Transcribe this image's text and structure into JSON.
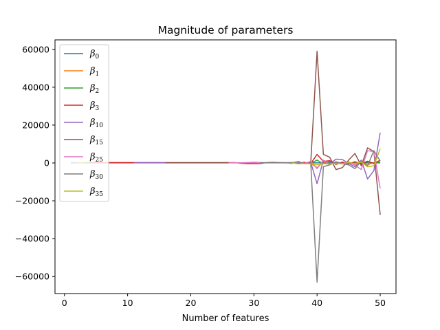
{
  "chart_data": {
    "type": "line",
    "title": "Magnitude of parameters",
    "xlabel": "Number of features",
    "ylabel": "",
    "xlim": [
      -1.5,
      52.5
    ],
    "ylim": [
      -69000,
      65000
    ],
    "xticks": [
      0,
      10,
      20,
      30,
      40,
      50
    ],
    "yticks": [
      -60000,
      -40000,
      -20000,
      0,
      20000,
      40000,
      60000
    ],
    "ytick_labels": [
      "−60000",
      "−40000",
      "−20000",
      "0",
      "20000",
      "40000",
      "60000"
    ],
    "grid": false,
    "legend_position": "top-left",
    "series": [
      {
        "name": "β",
        "sub": "0",
        "color": "#1f77b4",
        "x": [
          1,
          2,
          3,
          4,
          5,
          6,
          7,
          8,
          9,
          10,
          11,
          12,
          13,
          14,
          15,
          16,
          17,
          18,
          19,
          20,
          21,
          22,
          23,
          24,
          25,
          26,
          27,
          28,
          29,
          30,
          31,
          32,
          33,
          34,
          35,
          36,
          37,
          38,
          39,
          40,
          41,
          42,
          43,
          44,
          45,
          46,
          47,
          48,
          49,
          50
        ],
        "y": [
          50,
          50,
          50,
          50,
          50,
          50,
          50,
          50,
          50,
          50,
          50,
          50,
          50,
          50,
          50,
          50,
          50,
          50,
          50,
          50,
          50,
          50,
          50,
          50,
          50,
          50,
          50,
          50,
          50,
          50,
          50,
          50,
          50,
          50,
          50,
          50,
          50,
          50,
          50,
          50,
          50,
          50,
          50,
          50,
          50,
          50,
          50,
          50,
          50,
          50
        ]
      },
      {
        "name": "β",
        "sub": "1",
        "color": "#ff7f0e",
        "x": [
          2,
          3,
          4,
          5,
          6,
          7,
          8,
          9,
          10,
          11,
          12,
          13,
          14,
          15,
          16,
          17,
          18,
          19,
          20,
          21,
          22,
          23,
          24,
          25,
          26,
          27,
          28,
          29,
          30,
          31,
          32,
          33,
          34,
          35,
          36,
          37,
          38,
          39,
          40,
          41,
          42,
          43,
          44,
          45,
          46,
          47,
          48,
          49,
          50
        ],
        "y": [
          100,
          100,
          100,
          100,
          100,
          100,
          100,
          100,
          100,
          100,
          100,
          100,
          100,
          100,
          100,
          100,
          100,
          100,
          100,
          100,
          100,
          100,
          100,
          100,
          100,
          100,
          100,
          100,
          100,
          100,
          100,
          100,
          100,
          100,
          100,
          -200,
          200,
          -300,
          -2500,
          500,
          -500,
          300,
          -200,
          500,
          -800,
          500,
          -1000,
          300,
          500
        ]
      },
      {
        "name": "β",
        "sub": "2",
        "color": "#2ca02c",
        "x": [
          3,
          4,
          5,
          6,
          7,
          8,
          9,
          10,
          11,
          12,
          13,
          14,
          15,
          16,
          17,
          18,
          19,
          20,
          21,
          22,
          23,
          24,
          25,
          26,
          27,
          28,
          29,
          30,
          31,
          32,
          33,
          34,
          35,
          36,
          37,
          38,
          39,
          40,
          41,
          42,
          43,
          44,
          45,
          46,
          47,
          48,
          49,
          50
        ],
        "y": [
          100,
          100,
          100,
          100,
          100,
          100,
          100,
          100,
          100,
          100,
          100,
          100,
          100,
          100,
          100,
          100,
          100,
          100,
          100,
          100,
          100,
          100,
          100,
          100,
          100,
          100,
          100,
          100,
          100,
          100,
          100,
          100,
          100,
          100,
          100,
          100,
          -200,
          1500,
          -500,
          800,
          -300,
          400,
          -200,
          300,
          -300,
          500,
          -200,
          300
        ]
      },
      {
        "name": "β",
        "sub": "3",
        "color": "#d62728",
        "x": [
          4,
          5,
          6,
          7,
          8,
          9,
          10,
          11,
          12,
          13,
          14,
          15,
          16,
          17,
          18,
          19,
          20,
          21,
          22,
          23,
          24,
          25,
          26,
          27,
          28,
          29,
          30,
          31,
          32,
          33,
          34,
          35,
          36,
          37,
          38,
          39,
          40,
          41,
          42,
          43,
          44,
          45,
          46,
          47,
          48,
          49,
          50
        ],
        "y": [
          200,
          200,
          200,
          200,
          200,
          200,
          200,
          200,
          200,
          200,
          200,
          200,
          200,
          200,
          200,
          200,
          200,
          200,
          200,
          200,
          200,
          200,
          200,
          200,
          -200,
          -400,
          -400,
          -300,
          200,
          300,
          200,
          100,
          200,
          -200,
          300,
          -400,
          4500,
          800,
          1200,
          -800,
          300,
          -500,
          600,
          -400,
          900,
          -300,
          1500
        ]
      },
      {
        "name": "β",
        "sub": "10",
        "color": "#9467bd",
        "x": [
          11,
          12,
          13,
          14,
          15,
          16,
          17,
          18,
          19,
          20,
          21,
          22,
          23,
          24,
          25,
          26,
          27,
          28,
          29,
          30,
          31,
          32,
          33,
          34,
          35,
          36,
          37,
          38,
          39,
          40,
          41,
          42,
          43,
          44,
          45,
          46,
          47,
          48,
          49,
          50
        ],
        "y": [
          100,
          100,
          100,
          100,
          100,
          100,
          100,
          100,
          100,
          100,
          100,
          100,
          100,
          100,
          100,
          100,
          100,
          100,
          200,
          300,
          200,
          100,
          200,
          100,
          200,
          -300,
          800,
          -500,
          300,
          -11000,
          1500,
          -500,
          2000,
          1800,
          -200,
          -2000,
          1500,
          -8500,
          -4000,
          16000
        ]
      },
      {
        "name": "β",
        "sub": "15",
        "color": "#8c564b",
        "x": [
          16,
          17,
          18,
          19,
          20,
          21,
          22,
          23,
          24,
          25,
          26,
          27,
          28,
          29,
          30,
          31,
          32,
          33,
          34,
          35,
          36,
          37,
          38,
          39,
          40,
          41,
          42,
          43,
          44,
          45,
          46,
          47,
          48,
          49,
          50
        ],
        "y": [
          100,
          100,
          100,
          100,
          100,
          100,
          100,
          100,
          100,
          100,
          100,
          100,
          100,
          100,
          100,
          100,
          100,
          100,
          100,
          100,
          100,
          500,
          -300,
          200,
          59000,
          4500,
          3000,
          -3500,
          -2500,
          1500,
          5000,
          -1500,
          8000,
          6000,
          -27500
        ]
      },
      {
        "name": "β",
        "sub": "25",
        "color": "#e377c2",
        "x": [
          26,
          27,
          28,
          29,
          30,
          31,
          32,
          33,
          34,
          35,
          36,
          37,
          38,
          39,
          40,
          41,
          42,
          43,
          44,
          45,
          46,
          47,
          48,
          49,
          50
        ],
        "y": [
          100,
          100,
          100,
          100,
          100,
          100,
          100,
          100,
          100,
          100,
          -100,
          300,
          -200,
          800,
          -3000,
          1500,
          -1000,
          700,
          -400,
          600,
          -1200,
          -3500,
          6500,
          6000,
          -13500
        ]
      },
      {
        "name": "β",
        "sub": "30",
        "color": "#7f7f7f",
        "x": [
          31,
          32,
          33,
          34,
          35,
          36,
          37,
          38,
          39,
          40,
          41,
          42,
          43,
          44,
          45,
          46,
          47,
          48,
          49,
          50
        ],
        "y": [
          100,
          100,
          100,
          100,
          100,
          200,
          500,
          -400,
          -200,
          -63000,
          -2000,
          -1000,
          500,
          -500,
          -1000,
          -3000,
          1000,
          -1500,
          6500,
          1000
        ]
      },
      {
        "name": "β",
        "sub": "35",
        "color": "#bcbd22",
        "x": [
          36,
          37,
          38,
          39,
          40,
          41,
          42,
          43,
          44,
          45,
          46,
          47,
          48,
          49,
          50
        ],
        "y": [
          100,
          -500,
          -300,
          -500,
          -1000,
          -400,
          -600,
          -300,
          -500,
          200,
          -300,
          500,
          -2000,
          -1500,
          7500
        ]
      }
    ]
  }
}
